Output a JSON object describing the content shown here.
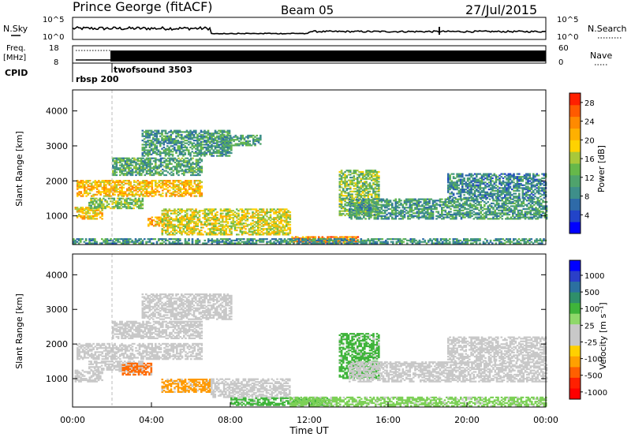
{
  "header": {
    "station": "Prince George (fitACF)",
    "beam": "Beam 05",
    "date": "27/Jul/2015"
  },
  "top_panels": {
    "nsky_label": "N.Sky",
    "nsearch_label": "N.Search",
    "noise_ticks_left": [
      "10^5",
      "10^0"
    ],
    "noise_ticks_right": [
      "10^5",
      "10^0"
    ],
    "freq_label_1": "Freq.",
    "freq_label_2": "[MHz]",
    "freq_ticks": [
      "18",
      "8"
    ],
    "nave_label": "Nave",
    "nave_ticks": [
      "60",
      "0"
    ],
    "cpid_label": "CPID",
    "cpid_entries": [
      {
        "text": "rbsp 200",
        "x_hour": 0.1
      },
      {
        "text": "twofsound 3503",
        "x_hour": 2.0
      }
    ]
  },
  "chart_data": [
    {
      "type": "heatmap",
      "title": "",
      "xlabel": "",
      "ylabel": "Slant Range [km]",
      "xlim": [
        0,
        24
      ],
      "ylim": [
        180,
        4600
      ],
      "yticks": [
        "1000",
        "2000",
        "3000",
        "4000"
      ],
      "colorbar": {
        "label": "Power [dB]",
        "ticks": [
          "4",
          "8",
          "12",
          "16",
          "20",
          "24",
          "28"
        ],
        "range": [
          0,
          30
        ]
      },
      "echo_bands": [
        {
          "t0": 0.1,
          "t1": 1.5,
          "r0": 900,
          "r1": 1250,
          "level": 20
        },
        {
          "t0": 0.2,
          "t1": 6.5,
          "r0": 1550,
          "r1": 2000,
          "level": 21
        },
        {
          "t0": 0.8,
          "t1": 3.5,
          "r0": 1200,
          "r1": 1500,
          "level": 14
        },
        {
          "t0": 2.0,
          "t1": 6.5,
          "r0": 2150,
          "r1": 2650,
          "level": 11
        },
        {
          "t0": 3.5,
          "t1": 8.0,
          "r0": 2700,
          "r1": 3450,
          "level": 10
        },
        {
          "t0": 3.8,
          "t1": 4.8,
          "r0": 700,
          "r1": 950,
          "level": 22
        },
        {
          "t0": 4.5,
          "t1": 11.0,
          "r0": 450,
          "r1": 1200,
          "level": 18
        },
        {
          "t0": 7.5,
          "t1": 9.5,
          "r0": 3000,
          "r1": 3300,
          "level": 10
        },
        {
          "t0": 11.0,
          "t1": 14.5,
          "r0": 220,
          "r1": 420,
          "level": 24
        },
        {
          "t0": 13.5,
          "t1": 15.5,
          "r0": 1000,
          "r1": 2300,
          "level": 14
        },
        {
          "t0": 14.0,
          "t1": 24.0,
          "r0": 900,
          "r1": 1500,
          "level": 10
        },
        {
          "t0": 19.0,
          "t1": 24.0,
          "r0": 1500,
          "r1": 2200,
          "level": 8
        },
        {
          "t0": 0.0,
          "t1": 24.0,
          "r0": 200,
          "r1": 350,
          "level": 9
        }
      ]
    },
    {
      "type": "heatmap",
      "title": "",
      "xlabel": "Time UT",
      "ylabel": "Slant Range [km]",
      "xlim": [
        0,
        24
      ],
      "ylim": [
        180,
        4600
      ],
      "xticks": [
        "00:00",
        "04:00",
        "08:00",
        "12:00",
        "16:00",
        "20:00",
        "00:00"
      ],
      "yticks": [
        "1000",
        "2000",
        "3000",
        "4000"
      ],
      "colorbar": {
        "label": "Velocity [m s⁻¹]",
        "ticks": [
          "1000",
          "500",
          "100",
          "25",
          "-25",
          "-100",
          "-500",
          "-1000"
        ]
      },
      "echo_bands": [
        {
          "t0": 0.1,
          "t1": 1.5,
          "r0": 900,
          "r1": 1250,
          "vel": "ground"
        },
        {
          "t0": 0.2,
          "t1": 6.5,
          "r0": 1550,
          "r1": 2000,
          "vel": "ground"
        },
        {
          "t0": 0.8,
          "t1": 3.5,
          "r0": 1200,
          "r1": 1500,
          "vel": "ground"
        },
        {
          "t0": 2.0,
          "t1": 6.5,
          "r0": 2150,
          "r1": 2650,
          "vel": "ground"
        },
        {
          "t0": 3.5,
          "t1": 8.0,
          "r0": 2700,
          "r1": 3450,
          "vel": "ground"
        },
        {
          "t0": 2.5,
          "t1": 4.0,
          "r0": 1100,
          "r1": 1450,
          "vel": "neg_high"
        },
        {
          "t0": 4.5,
          "t1": 7.0,
          "r0": 600,
          "r1": 1000,
          "vel": "neg_mid"
        },
        {
          "t0": 7.0,
          "t1": 11.0,
          "r0": 450,
          "r1": 1000,
          "vel": "ground"
        },
        {
          "t0": 8.0,
          "t1": 13.0,
          "r0": 220,
          "r1": 450,
          "vel": "pos_mid"
        },
        {
          "t0": 13.5,
          "t1": 15.5,
          "r0": 1000,
          "r1": 2300,
          "vel": "pos_mid"
        },
        {
          "t0": 14.0,
          "t1": 24.0,
          "r0": 900,
          "r1": 1500,
          "vel": "ground"
        },
        {
          "t0": 19.0,
          "t1": 24.0,
          "r0": 1500,
          "r1": 2200,
          "vel": "ground"
        },
        {
          "t0": 11.0,
          "t1": 24.0,
          "r0": 200,
          "r1": 450,
          "vel": "pos_low"
        }
      ]
    }
  ],
  "colors": {
    "power_scale": [
      "#0000ff",
      "#2244c8",
      "#2e6aa8",
      "#3e8f8a",
      "#4fa36c",
      "#66b84a",
      "#a8c83a",
      "#ffd200",
      "#ffb000",
      "#ff8a00",
      "#ff5a00",
      "#ff2000"
    ],
    "velocity_scale": [
      "#0000ff",
      "#2a3fc8",
      "#2b70a0",
      "#2f8f6a",
      "#3fb43a",
      "#8fd86a",
      "#c8c8c8",
      "#c8c8c8",
      "#ffd000",
      "#ffa000",
      "#ff6000",
      "#ff2000",
      "#ff0000"
    ],
    "ground": "#c8c8c8",
    "neg_high": "#ff6a00",
    "neg_mid": "#ff9a00",
    "pos_mid": "#3fb43a",
    "pos_low": "#7cd056"
  }
}
